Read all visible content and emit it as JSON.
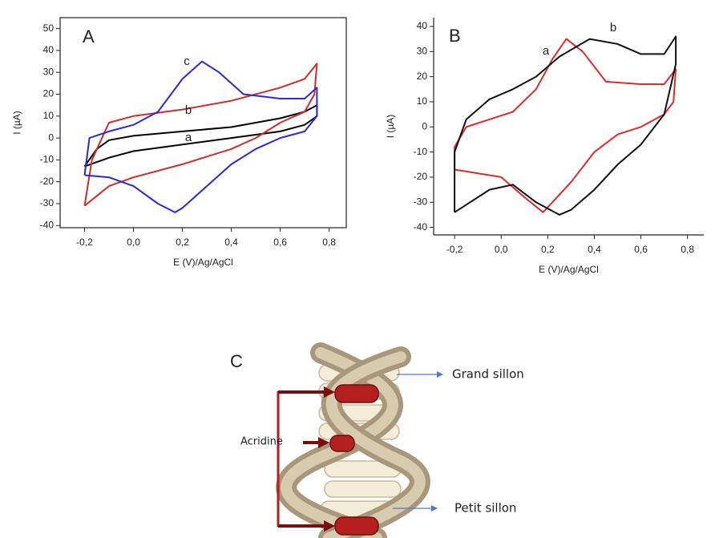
{
  "chart_data": [
    {
      "type": "line",
      "panel": "A",
      "x_label": "E (V)/Ag/AgCl",
      "y_label": "I (µA)",
      "box": true,
      "xlim": [
        -0.3,
        0.87
      ],
      "ylim": [
        -41,
        55
      ],
      "xticks": [
        {
          "value": -0.2,
          "label": "-0,2"
        },
        {
          "value": 0,
          "label": "0,0"
        },
        {
          "value": 0.2,
          "label": "0,2"
        },
        {
          "value": 0.4,
          "label": "0,4"
        },
        {
          "value": 0.6,
          "label": "0,6"
        },
        {
          "value": 0.8,
          "label": "0,8"
        }
      ],
      "yticks": [
        -40,
        -30,
        -20,
        -10,
        0,
        10,
        20,
        30,
        40,
        50
      ],
      "series": [
        {
          "name": "a",
          "color": "#000000",
          "x": [
            -0.2,
            -0.15,
            -0.1,
            0,
            0.2,
            0.4,
            0.6,
            0.7,
            0.75,
            0.75,
            0.7,
            0.6,
            0.4,
            0.2,
            0,
            -0.1,
            -0.2
          ],
          "values": [
            -13,
            -5,
            -1,
            1,
            3,
            5,
            9,
            12,
            15,
            10,
            6,
            3,
            0,
            -3,
            -6,
            -9,
            -13
          ]
        },
        {
          "name": "b",
          "color": "#d42a2a",
          "x": [
            -0.2,
            -0.17,
            -0.1,
            0,
            0.2,
            0.4,
            0.6,
            0.7,
            0.75,
            0.74,
            0.7,
            0.6,
            0.5,
            0.4,
            0.2,
            0,
            -0.1,
            -0.2
          ],
          "values": [
            -31,
            -10,
            7,
            10,
            13,
            17,
            23,
            27,
            34,
            20,
            12,
            7,
            0,
            -5,
            -12,
            -18,
            -22,
            -31
          ]
        },
        {
          "name": "c",
          "color": "#2a2ad4",
          "x": [
            -0.2,
            -0.18,
            -0.1,
            0,
            0.1,
            0.2,
            0.28,
            0.35,
            0.45,
            0.6,
            0.7,
            0.75,
            0.75,
            0.7,
            0.6,
            0.5,
            0.4,
            0.3,
            0.2,
            0.17,
            0.1,
            0,
            -0.1,
            -0.2
          ],
          "values": [
            -17,
            0,
            3,
            6,
            12,
            27,
            35,
            30,
            20,
            18,
            18,
            23,
            10,
            3,
            0,
            -5,
            -12,
            -22,
            -32,
            -34,
            -30,
            -22,
            -18,
            -17
          ]
        }
      ]
    },
    {
      "type": "line",
      "panel": "B",
      "x_label": "E (V)/Ag/AgCl",
      "y_label": "I (µA)",
      "box": false,
      "xlim": [
        -0.29,
        0.87
      ],
      "ylim": [
        -43,
        43.5
      ],
      "xticks": [
        {
          "value": -0.2,
          "label": "-0,2"
        },
        {
          "value": 0,
          "label": "0,0"
        },
        {
          "value": 0.2,
          "label": "0,2"
        },
        {
          "value": 0.4,
          "label": "0,4"
        },
        {
          "value": 0.6,
          "label": "0,6"
        },
        {
          "value": 0.8,
          "label": "0,8"
        }
      ],
      "yticks": [
        -40,
        -30,
        -20,
        -10,
        0,
        10,
        20,
        30,
        40
      ],
      "series": [
        {
          "name": "a",
          "color": "#e02a2a",
          "x": [
            -0.2,
            -0.2,
            -0.15,
            -0.05,
            0.05,
            0.15,
            0.22,
            0.28,
            0.35,
            0.45,
            0.6,
            0.7,
            0.75,
            0.74,
            0.7,
            0.6,
            0.5,
            0.4,
            0.3,
            0.18,
            0.1,
            0,
            -0.2
          ],
          "values": [
            -17,
            -8,
            0,
            3,
            6,
            15,
            27,
            35,
            30,
            18,
            17,
            17,
            23,
            10,
            5,
            0,
            -3,
            -10,
            -22,
            -34,
            -28,
            -20,
            -17
          ]
        },
        {
          "name": "b",
          "color": "#111111",
          "x": [
            -0.2,
            -0.2,
            -0.15,
            -0.05,
            0.05,
            0.15,
            0.25,
            0.38,
            0.5,
            0.6,
            0.7,
            0.75,
            0.75,
            0.7,
            0.6,
            0.5,
            0.4,
            0.3,
            0.25,
            0.15,
            0.05,
            -0.05,
            -0.2
          ],
          "values": [
            -34,
            -10,
            3,
            11,
            15,
            20,
            28,
            35,
            33,
            29,
            29,
            36,
            25,
            5,
            -7,
            -15,
            -25,
            -33,
            -35,
            -30,
            -23,
            -25,
            -34
          ]
        }
      ]
    }
  ],
  "diagram": {
    "panel": "C",
    "major_groove": "Grand sillon",
    "intercalator": "Acridine",
    "minor_groove": "Petit sillon"
  }
}
